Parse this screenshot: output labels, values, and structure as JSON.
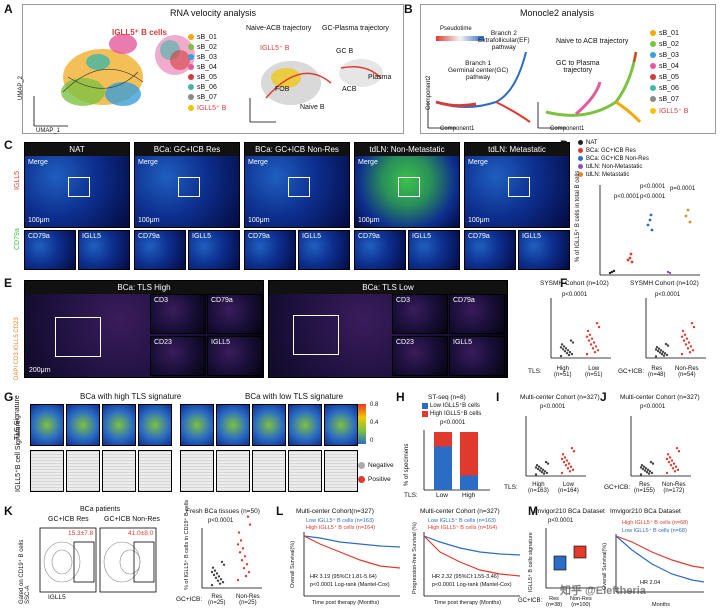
{
  "panels": {
    "a": {
      "label": "A",
      "title": "RNA velocity analysis",
      "umap_x": "UMAP_1",
      "umap_y": "UMAP_2",
      "callout": "IGLL5⁺ B cells",
      "traj1": "Naive-ACB trajectory",
      "traj2": "GC-Plasma trajectory",
      "traj_callout": "IGLL5⁺ B",
      "cell_labels": [
        "FOB",
        "Naive B",
        "ACB",
        "GC B",
        "Plasma"
      ],
      "legend": [
        "sB_01",
        "sB_02",
        "sB_03",
        "sB_04",
        "sB_05",
        "sB_06",
        "sB_07",
        "IGLL5⁺ B"
      ],
      "legend_colors": [
        "#f2a900",
        "#7cc242",
        "#3a9fd8",
        "#e45a9c",
        "#d43c3c",
        "#3fb8a8",
        "#8a8a8a",
        "#f2c500"
      ]
    },
    "b": {
      "label": "B",
      "title": "Monocle2 analysis",
      "pseudotime": "Pseudotime",
      "branch2": "Branch 2\nExtrafollicular(EF)\npathway",
      "branch1": "Branch 1\nGerminal center(GC)\npathway",
      "c1": "Component1",
      "c2": "Component2",
      "traj1": "Naive to ACB trajectory",
      "traj2": "GC to Plasma\ntrajectory"
    },
    "c": {
      "label": "C",
      "headers": [
        "NAT",
        "BCa: GC+ICB Res",
        "BCa: GC+ICB Non-Res",
        "tdLN: Non-Metastatic",
        "tdLN: Metastatic"
      ],
      "merge": "Merge",
      "scale": "100μm",
      "cd79a": "CD79a",
      "igll5": "IGLL5",
      "side": [
        "CD79a",
        "IGLL5"
      ]
    },
    "d": {
      "label": "D",
      "legend": [
        "NAT",
        "BCa: GC+ICB Res",
        "BCa: GC+ICB Non-Res",
        "tdLN: Non-Metastatic",
        "tdLN: Metastatic"
      ],
      "ylabel": "% of IGLL5⁺ B cells in total B cells",
      "yticks": [
        "0",
        "10",
        "20",
        "30",
        "40"
      ],
      "pvals": [
        "p<0.0001",
        "p<0.0001",
        "p<0.0001",
        "p=0.0001"
      ]
    },
    "e": {
      "label": "E",
      "title_high": "BCa: TLS High",
      "title_low": "BCa: TLS Low",
      "markers": [
        "CD3",
        "CD79a",
        "CD23",
        "IGLL5"
      ],
      "side": "DAPI CD3 IGLL5 CD23",
      "scale": "200μm"
    },
    "f": {
      "label": "F",
      "left": {
        "title": "SYSMH Cohort (n=102)",
        "pval": "p<0.0001",
        "row": "TLS:",
        "groups": [
          "High\n(n=51)",
          "Low\n(n=51)"
        ],
        "means": [
          5,
          10
        ]
      },
      "right": {
        "title": "SYSMH Cohort (n=102)",
        "pval": "p<0.0001",
        "row": "GC+ICB:",
        "groups": [
          "Res\n(n=48)",
          "Non-Res\n(n=54)"
        ],
        "means": [
          4,
          10
        ]
      },
      "ylabel": "Number of IGLL5⁺ B cells per field",
      "yticks": [
        "0",
        "10",
        "20",
        "30"
      ]
    },
    "g": {
      "label": "G",
      "title_high": "BCa with high TLS signature",
      "title_low": "BCa with low TLS signature",
      "row1": "TLS Signature",
      "row2": "IGLL5⁺B cell Signature",
      "scale": [
        "0.8",
        "0.6",
        "0.4",
        "0.2",
        "0"
      ],
      "negative": "Negative",
      "positive": "Positive"
    },
    "h": {
      "label": "H",
      "title": "ST-seq (n=8)",
      "legend": [
        "Low IGLL5⁺B cells",
        "High IGLL5⁺B cells"
      ],
      "pval": "p<0.0001",
      "ylabel": "% of specimens",
      "yticks": [
        "0",
        "20",
        "40",
        "60",
        "80",
        "100"
      ],
      "row": "TLS:",
      "groups": [
        "Low",
        "High"
      ]
    },
    "i": {
      "label": "I",
      "title": "Multi-center Cohort (n=327)",
      "pval": "p<0.0001",
      "ylabel": "Number of IGLL5⁺ B cells per field",
      "row": "TLS:",
      "groups": [
        "High\n(n=163)",
        "Low\n(n=164)"
      ],
      "yticks": [
        "0",
        "10",
        "20",
        "30"
      ]
    },
    "j": {
      "label": "J",
      "title": "Multi-center Cohort (n=327)",
      "pval": "p<0.0001",
      "ylabel": "Number of IGLL5⁺ B cells per field",
      "row": "GC+ICB:",
      "groups": [
        "Res\n(n=155)",
        "Non-Res\n(n=172)"
      ],
      "yticks": [
        "0",
        "10",
        "20",
        "30"
      ]
    },
    "k": {
      "label": "K",
      "title": "BCa patients",
      "left": "GC+ICB Res",
      "right": "GC+ICB Non-Res",
      "vals": [
        "15.3±7.8",
        "41.0±8.0"
      ],
      "ylab": "Gated on CD19⁺ B cells\nSSC-A",
      "xlab": "IGLL5",
      "sub_title": "Fresh BCa tissues (n=50)",
      "pval": "p<0.0001",
      "sub_ylabel": "% of IGLL5⁺ B cells in CD19⁺ B cells",
      "row": "GC+ICB:",
      "groups": [
        "Res\n(n=25)",
        "Non-Res\n(n=25)"
      ],
      "yticks": [
        "0",
        "20",
        "40",
        "60"
      ]
    },
    "l": {
      "label": "L",
      "left": {
        "title": "Multi-center Cohort(n=327)",
        "legend": [
          "Low IGLL5⁺ B cells (n=163)",
          "High IGLL5⁺ B cells (n=164)"
        ],
        "hr": "HR 3.19 (95%CI:1.81-5.64)",
        "p": "p<0.0001 Log-rank (Mantel-Cox)",
        "ylabel": "Overall Survival(%)",
        "xlabel": "Time post therapy (Months)"
      },
      "right": {
        "title": "Multi-center Cohort (n=327)",
        "legend": [
          "Low IGLL5⁺ B cells (n=163)",
          "High IGLL5⁺ B cells (n=164)"
        ],
        "hr": "HR 2.32 (95%CI:1.55-3.46)",
        "p": "p<0.0001 Log-rank (Mantel-Cox)",
        "ylabel": "Progression-free Survival (%)",
        "xlabel": "Time post therapy (Months)"
      },
      "yticks": [
        "0",
        "20",
        "40",
        "60",
        "80",
        "100"
      ],
      "xticks": [
        "0",
        "10",
        "20",
        "30",
        "40",
        "50",
        "60"
      ]
    },
    "m": {
      "label": "M",
      "left": {
        "title": "Imvigor210 BCa Dataset",
        "pval": "p<0.0001",
        "ylabel": "IGLL5⁺ B cells signature",
        "row": "GC+ICB:",
        "groups": [
          "Res\n(n=38)",
          "Non-Res\n(n=100)"
        ],
        "yticks": [
          "0",
          "0.2",
          "0.4",
          "0.6",
          "0.8"
        ]
      },
      "right": {
        "title": "Imvigor210 BCa Dataset",
        "legend": [
          "High IGLL5⁺ B cells (n=68)",
          "Low IGLL5⁺ B cells (n=68)"
        ],
        "ylabel": "Overall Survival(%)",
        "xlabel": "Months",
        "hr": "HR 2.04",
        "xticks": [
          "0",
          "10",
          "20"
        ],
        "yticks": [
          "0",
          "50",
          "100"
        ]
      }
    }
  },
  "watermark": "知乎 @Eleftheria",
  "colors": {
    "red": "#e03a2f",
    "blue": "#2b6cc4",
    "orange": "#e08a2b",
    "purple": "#8a4fbf"
  }
}
